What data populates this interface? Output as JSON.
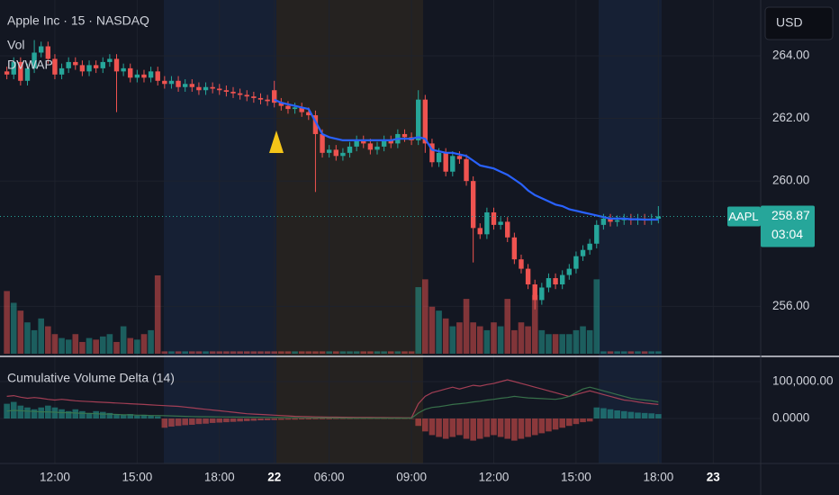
{
  "chart_data": [
    {
      "type": "candlestick",
      "title": "Apple Inc · 15 · NASDAQ",
      "currency": "USD",
      "symbol": "AAPL",
      "last_price": 258.87,
      "countdown": "03:04",
      "up_color": "#26a69a",
      "down_color": "#ef5350",
      "open": [
        263.5,
        263.4,
        263.8,
        263.2,
        263.6,
        264.1,
        264.3,
        263.9,
        263.4,
        263.6,
        263.8,
        263.7,
        263.5,
        263.7,
        263.6,
        263.8,
        263.9,
        263.5,
        263.6,
        263.3,
        263.4,
        263.3,
        263.5,
        263.2,
        263.1,
        263.2,
        263.0,
        263.1,
        263.0,
        262.9,
        263.0,
        262.95,
        262.9,
        262.85,
        262.8,
        262.75,
        262.7,
        262.65,
        262.6,
        262.9,
        262.5,
        262.4,
        262.3,
        262.35,
        262.2,
        262.1,
        261.5,
        260.9,
        261.0,
        260.8,
        260.9,
        261.1,
        261.3,
        261.2,
        261.0,
        261.1,
        261.3,
        261.2,
        261.5,
        261.4,
        261.3,
        262.6,
        261.2,
        260.6,
        260.9,
        260.3,
        260.8,
        260.7,
        260.0,
        258.5,
        258.3,
        259.0,
        258.6,
        258.7,
        258.2,
        257.5,
        257.2,
        256.7,
        256.2,
        256.6,
        256.9,
        256.7,
        257.0,
        257.2,
        257.6,
        257.8,
        258.0,
        258.6,
        258.8,
        258.7,
        258.75,
        258.8,
        258.75,
        258.8,
        258.75,
        258.8
      ],
      "high": [
        263.65,
        263.95,
        263.95,
        263.75,
        264.5,
        264.45,
        264.45,
        264.05,
        263.75,
        263.95,
        263.95,
        263.85,
        263.85,
        263.85,
        263.95,
        264.05,
        264.05,
        263.75,
        263.75,
        263.55,
        263.55,
        263.65,
        263.65,
        263.35,
        263.35,
        263.35,
        263.25,
        263.25,
        263.15,
        263.15,
        263.15,
        263.1,
        263.05,
        263.0,
        262.95,
        262.9,
        262.85,
        262.8,
        262.75,
        263.2,
        262.65,
        262.55,
        262.5,
        262.5,
        262.35,
        262.25,
        261.65,
        261.15,
        261.15,
        261.05,
        261.25,
        261.45,
        261.45,
        261.35,
        261.25,
        261.45,
        261.45,
        261.65,
        261.65,
        261.55,
        262.9,
        262.75,
        261.35,
        261.05,
        261.05,
        260.95,
        260.95,
        260.85,
        260.15,
        258.65,
        259.15,
        259.15,
        258.85,
        258.85,
        258.35,
        257.65,
        257.35,
        256.85,
        256.75,
        257.05,
        257.05,
        257.15,
        257.35,
        257.75,
        257.95,
        258.15,
        258.75,
        258.95,
        258.95,
        258.9,
        258.95,
        258.95,
        258.95,
        258.95,
        258.95,
        259.2
      ],
      "low": [
        263.25,
        263.25,
        263.05,
        263.05,
        263.45,
        263.95,
        263.75,
        263.25,
        263.25,
        263.45,
        263.55,
        263.35,
        263.35,
        263.45,
        263.45,
        263.65,
        262.2,
        263.35,
        263.15,
        263.15,
        263.15,
        263.15,
        263.05,
        262.95,
        262.95,
        262.85,
        262.85,
        262.85,
        262.75,
        262.75,
        262.8,
        262.75,
        262.7,
        262.65,
        262.6,
        262.55,
        262.5,
        262.45,
        262.4,
        262.35,
        262.25,
        262.15,
        262.15,
        262.05,
        261.95,
        259.65,
        260.75,
        260.75,
        260.65,
        260.65,
        260.75,
        260.95,
        261.05,
        260.85,
        260.85,
        260.95,
        261.05,
        261.05,
        261.25,
        261.15,
        261.15,
        260.9,
        260.45,
        260.45,
        260.15,
        260.15,
        260.55,
        259.85,
        257.4,
        258.15,
        258.15,
        258.45,
        258.45,
        258.05,
        257.35,
        257.05,
        256.55,
        255.9,
        256.05,
        256.45,
        256.55,
        256.55,
        256.85,
        257.05,
        257.45,
        257.65,
        257.85,
        258.45,
        258.55,
        258.55,
        258.6,
        258.6,
        258.6,
        258.6,
        258.6,
        258.65
      ],
      "close": [
        263.4,
        263.8,
        263.2,
        263.6,
        264.1,
        264.3,
        263.9,
        263.4,
        263.6,
        263.8,
        263.7,
        263.5,
        263.7,
        263.6,
        263.8,
        263.9,
        263.5,
        263.6,
        263.3,
        263.4,
        263.3,
        263.5,
        263.2,
        263.1,
        263.2,
        263.0,
        263.1,
        263.0,
        262.9,
        263.0,
        262.95,
        262.9,
        262.85,
        262.8,
        262.75,
        262.7,
        262.65,
        262.6,
        262.55,
        262.5,
        262.4,
        262.3,
        262.35,
        262.2,
        262.1,
        261.5,
        260.9,
        261.0,
        260.8,
        260.9,
        261.1,
        261.3,
        261.2,
        261.0,
        261.1,
        261.3,
        261.2,
        261.5,
        261.4,
        261.3,
        262.6,
        261.2,
        260.6,
        260.9,
        260.3,
        260.8,
        260.7,
        260.0,
        258.5,
        258.3,
        259.0,
        258.6,
        258.7,
        258.2,
        257.5,
        257.2,
        256.7,
        256.2,
        256.6,
        256.9,
        256.7,
        257.0,
        257.2,
        257.6,
        257.8,
        258.0,
        258.6,
        258.8,
        258.7,
        258.75,
        258.8,
        258.75,
        258.8,
        258.75,
        258.8,
        258.87
      ],
      "series": [
        {
          "name": "Vol",
          "values": [
            80,
            65,
            55,
            40,
            30,
            45,
            35,
            25,
            20,
            18,
            25,
            15,
            20,
            18,
            22,
            25,
            15,
            35,
            20,
            18,
            25,
            30,
            100,
            3,
            3,
            3,
            3,
            3,
            3,
            3,
            3,
            3,
            3,
            3,
            3,
            3,
            3,
            3,
            3,
            3,
            3,
            3,
            3,
            3,
            3,
            3,
            3,
            3,
            3,
            3,
            3,
            3,
            3,
            3,
            3,
            3,
            3,
            3,
            3,
            3,
            85,
            95,
            60,
            55,
            45,
            35,
            40,
            70,
            40,
            35,
            30,
            40,
            35,
            70,
            30,
            40,
            35,
            75,
            30,
            25,
            25,
            25,
            25,
            30,
            35,
            30,
            95,
            3,
            3,
            3,
            3,
            3,
            3,
            3,
            3,
            3
          ]
        },
        {
          "name": "DVWAP",
          "color": "#2962ff",
          "values": [
            null,
            null,
            null,
            null,
            null,
            null,
            null,
            null,
            null,
            null,
            null,
            null,
            null,
            null,
            null,
            null,
            null,
            null,
            null,
            null,
            null,
            null,
            null,
            null,
            null,
            null,
            null,
            null,
            null,
            null,
            null,
            null,
            null,
            null,
            null,
            null,
            null,
            null,
            null,
            262.6,
            262.5,
            262.45,
            262.4,
            262.35,
            262.3,
            261.9,
            261.5,
            261.4,
            261.35,
            261.3,
            261.3,
            261.3,
            261.3,
            261.3,
            261.3,
            261.3,
            261.3,
            261.35,
            261.35,
            261.35,
            261.4,
            261.35,
            261.0,
            260.95,
            260.9,
            260.9,
            260.85,
            260.8,
            260.65,
            260.5,
            260.45,
            260.4,
            260.3,
            260.2,
            260.05,
            259.9,
            259.7,
            259.55,
            259.45,
            259.35,
            259.25,
            259.2,
            259.1,
            259.05,
            259.0,
            258.95,
            258.9,
            258.85,
            258.8,
            258.8,
            258.8,
            258.78,
            258.78,
            258.77,
            258.77,
            258.77
          ]
        }
      ],
      "xlim": [
        -1,
        109
      ],
      "xticks": [
        {
          "value": 7,
          "label": "12:00"
        },
        {
          "value": 19,
          "label": "15:00"
        },
        {
          "value": 31,
          "label": "18:00"
        },
        {
          "value": 39,
          "label": "22"
        },
        {
          "value": 47,
          "label": "06:00"
        },
        {
          "value": 59,
          "label": "09:00"
        },
        {
          "value": 71,
          "label": "12:00"
        },
        {
          "value": 83,
          "label": "15:00"
        },
        {
          "value": 95,
          "label": "18:00"
        },
        {
          "value": 103,
          "label": "23"
        }
      ],
      "ylim": [
        254.43,
        265.78
      ],
      "yticks": [
        {
          "value": 264,
          "label": "264.00"
        },
        {
          "value": 262,
          "label": "262.00"
        },
        {
          "value": 260,
          "label": "260.00"
        },
        {
          "value": 256,
          "label": "256.00"
        }
      ]
    },
    {
      "type": "histogram",
      "title": "Cumulative Volume Delta (14)",
      "up_color": "#26a69a",
      "down_color": "#ef5350",
      "xlim": [
        -1,
        109
      ],
      "ylim": [
        -122000,
        166000
      ],
      "yticks": [
        {
          "value": 100000,
          "label": "100,000.00"
        },
        {
          "value": 0,
          "label": "0.0000"
        }
      ],
      "values": [
        40000,
        45000,
        35000,
        30000,
        25000,
        30000,
        35000,
        30000,
        25000,
        20000,
        25000,
        20000,
        15000,
        20000,
        18000,
        15000,
        12000,
        10000,
        12000,
        8000,
        10000,
        8000,
        6000,
        -25000,
        -22000,
        -20000,
        -18000,
        -17000,
        -15000,
        -14000,
        -12000,
        -11000,
        -10000,
        -9000,
        -8000,
        -7000,
        -6000,
        -5000,
        -4500,
        -4000,
        -3500,
        -3000,
        -3000,
        -2500,
        -2500,
        -2000,
        -2000,
        -2000,
        -1500,
        -1500,
        -1500,
        -1000,
        -1000,
        -1000,
        -1000,
        -1000,
        -1000,
        -1000,
        -1000,
        -1000,
        -20000,
        -35000,
        -45000,
        -50000,
        -55000,
        -50000,
        -45000,
        -55000,
        -60000,
        -55000,
        -50000,
        -45000,
        -50000,
        -55000,
        -60000,
        -55000,
        -50000,
        -45000,
        -40000,
        -35000,
        -30000,
        -25000,
        -20000,
        -15000,
        -10000,
        -8000,
        30000,
        28000,
        25000,
        22000,
        20000,
        18000,
        16000,
        15000,
        14000,
        12000
      ],
      "series": [
        {
          "color": "#b2435a",
          "values": [
            60000,
            62000,
            58000,
            55000,
            57000,
            55000,
            52000,
            50000,
            52000,
            50000,
            48000,
            47000,
            46000,
            45000,
            44000,
            43000,
            42000,
            41000,
            40000,
            39000,
            38000,
            37000,
            36000,
            35000,
            34000,
            33000,
            31000,
            29000,
            27000,
            25000,
            23000,
            21000,
            19000,
            17000,
            15000,
            13000,
            12000,
            11000,
            10000,
            9000,
            8000,
            7000,
            6000,
            5500,
            5000,
            4500,
            4000,
            3800,
            3600,
            3400,
            3200,
            3000,
            2800,
            2600,
            2500,
            2400,
            2300,
            2200,
            2100,
            2000,
            40000,
            60000,
            70000,
            75000,
            80000,
            85000,
            80000,
            85000,
            90000,
            88000,
            92000,
            95000,
            100000,
            105000,
            100000,
            95000,
            90000,
            85000,
            80000,
            75000,
            70000,
            65000,
            60000,
            65000,
            70000,
            75000,
            70000,
            65000,
            60000,
            55000,
            50000,
            48000,
            45000,
            42000,
            40000,
            38000
          ]
        },
        {
          "color": "#3c7a4f",
          "values": [
            20000,
            22000,
            21000,
            20000,
            19000,
            18000,
            18000,
            17000,
            16000,
            16000,
            15000,
            14000,
            14000,
            13000,
            12000,
            12000,
            11000,
            10000,
            10000,
            9000,
            9000,
            8000,
            8000,
            7500,
            7000,
            6500,
            6000,
            5500,
            5000,
            4800,
            4600,
            4400,
            4200,
            4000,
            3800,
            3600,
            3400,
            3200,
            3000,
            2800,
            2600,
            2400,
            2200,
            2000,
            1800,
            1600,
            1500,
            1400,
            1300,
            1200,
            1100,
            1000,
            1000,
            1000,
            1000,
            1000,
            1000,
            1000,
            1000,
            1000,
            15000,
            25000,
            30000,
            32000,
            35000,
            38000,
            40000,
            42000,
            45000,
            47000,
            50000,
            52000,
            55000,
            57000,
            60000,
            58000,
            56000,
            55000,
            54000,
            53000,
            52000,
            55000,
            60000,
            70000,
            80000,
            85000,
            80000,
            75000,
            70000,
            65000,
            60000,
            55000,
            52000,
            50000,
            48000,
            45000
          ]
        }
      ]
    }
  ]
}
